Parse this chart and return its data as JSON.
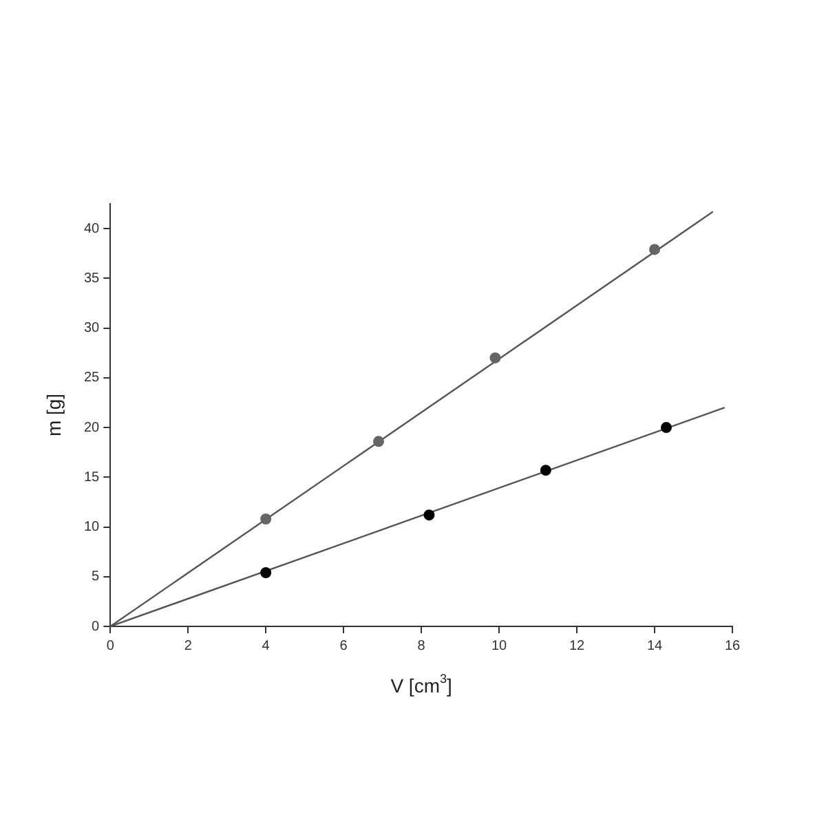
{
  "chart_data": {
    "type": "scatter",
    "xlabel": "V [cm$^{3}$]",
    "ylabel": "m [g]",
    "xlim": [
      0,
      16
    ],
    "xticks": [
      0,
      2,
      4,
      6,
      8,
      10,
      12,
      14,
      16
    ],
    "ylim": [
      0,
      42.5
    ],
    "yticks": [
      0,
      5,
      10,
      15,
      20,
      25,
      30,
      35,
      40
    ],
    "legend": false,
    "grid": false,
    "series": [
      {
        "color": "#666666",
        "marker": "circle",
        "x": [
          4,
          6.9,
          9.9,
          14
        ],
        "values": [
          10.8,
          18.6,
          27,
          37.9
        ]
      },
      {
        "color": "#000000",
        "marker": "circle",
        "x": [
          4,
          8.2,
          11.2,
          14.3
        ],
        "values": [
          5.4,
          11.2,
          15.7,
          20
        ]
      },
      {
        "type": "line",
        "color": "#555555",
        "marker": "none",
        "x": [
          0,
          15.5
        ],
        "values": [
          0,
          41.7
        ]
      },
      {
        "type": "line",
        "color": "#555555",
        "marker": "none",
        "x": [
          0,
          15.8
        ],
        "values": [
          0,
          22
        ]
      }
    ]
  }
}
